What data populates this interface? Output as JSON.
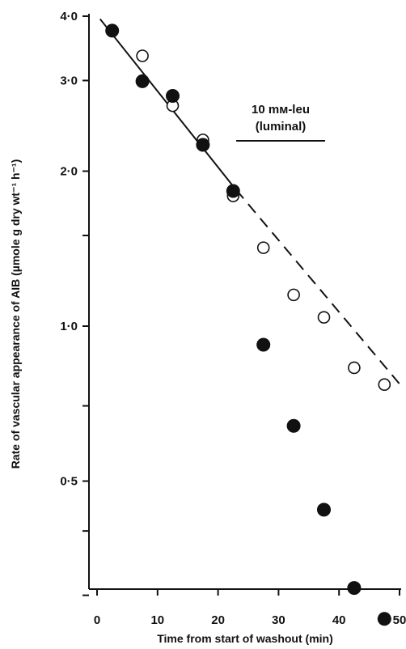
{
  "chart_data": {
    "type": "scatter",
    "title": "",
    "xlabel": "Time from start of washout (min)",
    "ylabel": "Rate of vascular appearance of AIB (µmole g dry wt⁻¹ h⁻¹)",
    "x_scale": "linear",
    "y_scale": "log",
    "xlim": [
      0,
      50
    ],
    "ylim": [
      0.2,
      4.0
    ],
    "x_ticks": [
      0,
      10,
      20,
      30,
      40,
      50
    ],
    "x_tick_labels": [
      "0",
      "10",
      "20",
      "30",
      "40",
      "50"
    ],
    "y_ticks": [
      0.3,
      0.4,
      0.5,
      0.7,
      1.0,
      1.5,
      2.0,
      3.0,
      4.0
    ],
    "y_tick_labels": [
      "",
      "",
      "0·5",
      "",
      "1·0",
      "",
      "2·0",
      "3·0",
      "4·0"
    ],
    "grid": false,
    "series": [
      {
        "marker": "filled-circle",
        "x": [
          2.5,
          7.5,
          12.5,
          17.5,
          22.5,
          27.5,
          32.5,
          37.5,
          42.5,
          47.5
        ],
        "y": [
          3.75,
          2.99,
          2.8,
          2.25,
          1.83,
          0.92,
          0.64,
          0.44,
          0.31,
          0.27
        ]
      },
      {
        "marker": "open-circle",
        "x": [
          7.5,
          12.5,
          17.5,
          22.5,
          27.5,
          32.5,
          37.5,
          42.5,
          47.5
        ],
        "y": [
          3.35,
          2.68,
          2.3,
          1.79,
          1.42,
          1.15,
          1.04,
          0.83,
          0.77
        ]
      }
    ],
    "lines": [
      {
        "style": "solid",
        "x": [
          0.5,
          22.5
        ],
        "y": [
          3.95,
          1.87
        ]
      },
      {
        "style": "dashed",
        "x": [
          23.0,
          50.5
        ],
        "y": [
          1.84,
          0.76
        ]
      }
    ],
    "annotation": {
      "label": "10 mᴍ-leu",
      "sublabel": "(luminal)",
      "bar_x": [
        23.0,
        37.7
      ]
    }
  }
}
